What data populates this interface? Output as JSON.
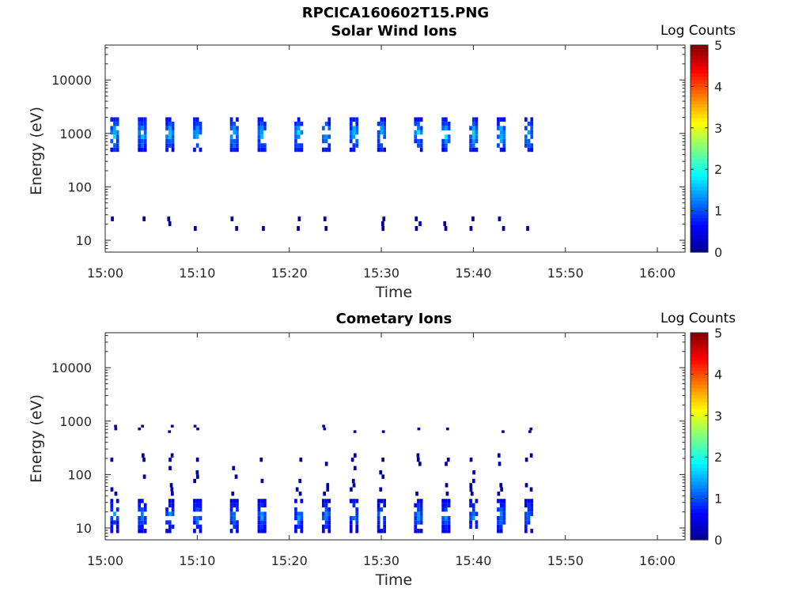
{
  "page": {
    "title": "RPCICA160602T15.PNG"
  },
  "panels": [
    {
      "title": "Solar Wind Ions",
      "xlabel": "Time",
      "ylabel": "Energy (eV)",
      "colorbar_label": "Log Counts"
    },
    {
      "title": "Cometary Ions",
      "xlabel": "Time",
      "ylabel": "Energy (eV)",
      "colorbar_label": "Log Counts"
    }
  ],
  "colors": {
    "axis": "#262626",
    "colormap": [
      "#00008f",
      "#0000ff",
      "#0080ff",
      "#00ffff",
      "#80ff80",
      "#ffff00",
      "#ff8000",
      "#ff0000",
      "#800000"
    ]
  },
  "chart_data": [
    {
      "type": "heatmap",
      "title": "Solar Wind Ions",
      "xlabel": "Time",
      "ylabel": "Energy (eV)",
      "yscale": "log",
      "xlim": [
        "15:00",
        "16:03"
      ],
      "ylim": [
        6,
        45000
      ],
      "x_ticks": [
        "15:00",
        "15:10",
        "15:20",
        "15:30",
        "15:40",
        "15:50",
        "16:00"
      ],
      "y_ticks": [
        "10",
        "100",
        "1000",
        "10000"
      ],
      "colorbar": {
        "label": "Log Counts",
        "range": [
          0,
          5
        ],
        "ticks": [
          "0",
          "1",
          "2",
          "3",
          "4",
          "5"
        ]
      },
      "bursts": [
        "15:01",
        "15:04",
        "15:07",
        "15:10",
        "15:14",
        "15:17",
        "15:21",
        "15:24",
        "15:27",
        "15:30",
        "15:34",
        "15:37",
        "15:40",
        "15:43",
        "15:46"
      ],
      "bands": [
        {
          "energy_min": 450,
          "energy_max": 2000,
          "log_counts_max": 2.0
        },
        {
          "energy_min": 15,
          "energy_max": 28,
          "log_counts_max": 0.2
        }
      ]
    },
    {
      "type": "heatmap",
      "title": "Cometary Ions",
      "xlabel": "Time",
      "ylabel": "Energy (eV)",
      "yscale": "log",
      "xlim": [
        "15:00",
        "16:03"
      ],
      "ylim": [
        6,
        45000
      ],
      "x_ticks": [
        "15:00",
        "15:10",
        "15:20",
        "15:30",
        "15:40",
        "15:50",
        "16:00"
      ],
      "y_ticks": [
        "10",
        "100",
        "1000",
        "10000"
      ],
      "colorbar": {
        "label": "Log Counts",
        "range": [
          0,
          5
        ],
        "ticks": [
          "0",
          "1",
          "2",
          "3",
          "4",
          "5"
        ]
      },
      "bursts": [
        "15:01",
        "15:04",
        "15:07",
        "15:10",
        "15:14",
        "15:17",
        "15:21",
        "15:24",
        "15:27",
        "15:30",
        "15:34",
        "15:37",
        "15:40",
        "15:43",
        "15:46"
      ],
      "bands": [
        {
          "energy_min": 8,
          "energy_max": 35,
          "log_counts_max": 1.6
        },
        {
          "energy_min": 40,
          "energy_max": 250,
          "log_counts_max": 0.2
        },
        {
          "energy_min": 600,
          "energy_max": 850,
          "log_counts_max": 0.2
        }
      ]
    }
  ]
}
